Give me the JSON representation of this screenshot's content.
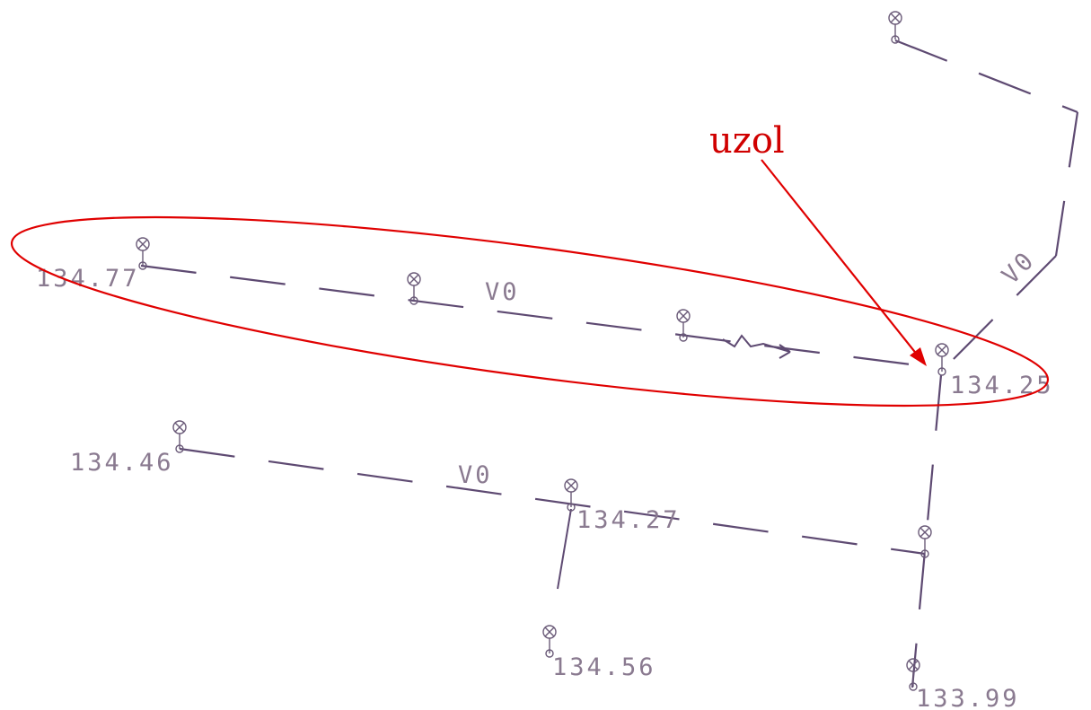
{
  "annotation": "uzol",
  "elevations": [
    "134.77",
    "134.25",
    "134.46",
    "134.27",
    "134.56",
    "133.99"
  ],
  "line_labels": [
    "V0",
    "V0",
    "V0"
  ]
}
